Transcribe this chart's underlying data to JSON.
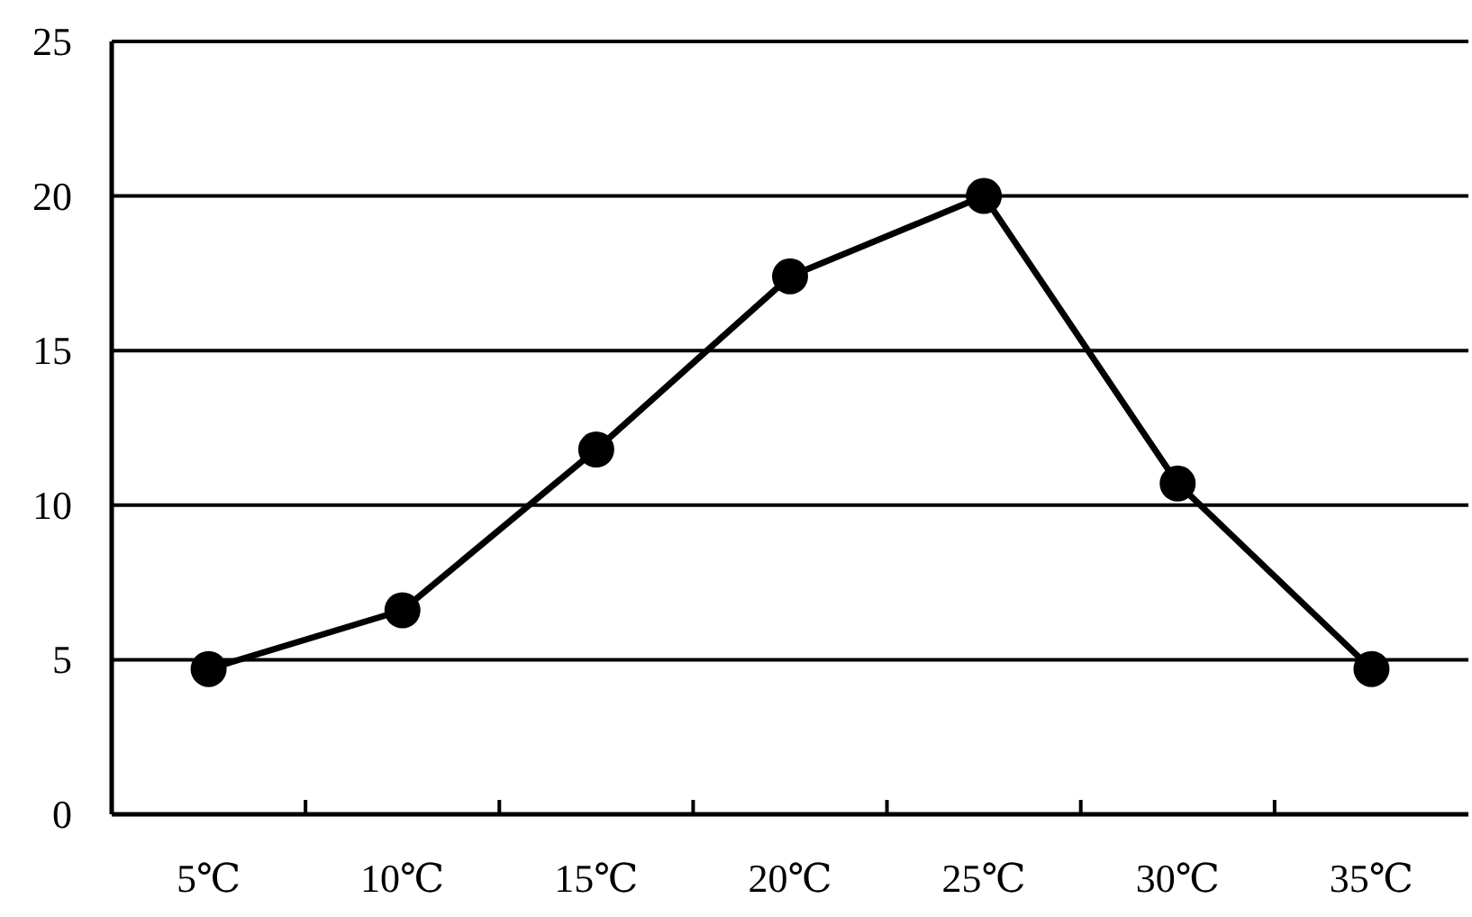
{
  "chart_data": {
    "type": "line",
    "categories": [
      "5℃",
      "10℃",
      "15℃",
      "20℃",
      "25℃",
      "30℃",
      "35℃"
    ],
    "series": [
      {
        "color": "#000000",
        "values": [
          4.7,
          6.6,
          11.8,
          17.4,
          20.0,
          10.7,
          4.7
        ]
      }
    ],
    "ylim": [
      0,
      25
    ],
    "yticks": [
      0,
      5,
      10,
      15,
      20,
      25
    ],
    "grid": "y",
    "marker": "circle",
    "line_style": "solid"
  }
}
